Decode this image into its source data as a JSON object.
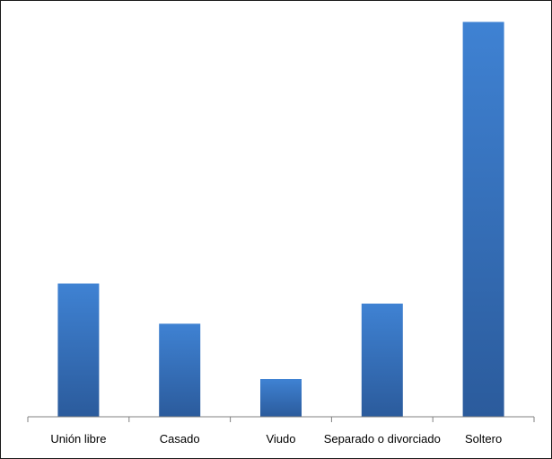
{
  "chart_data": {
    "type": "bar",
    "categories": [
      "Unión libre",
      "Casado",
      "Viudo",
      "Separado o divorciado",
      "Soltero"
    ],
    "values": [
      5.3,
      3.7,
      1.5,
      4.5,
      15.7
    ],
    "ylim": [
      0,
      16
    ],
    "grid": false,
    "legend": "none",
    "colors": {
      "bar_top": "#3f82d3",
      "bar_bottom": "#2b5b9c",
      "axis": "#808080"
    }
  }
}
